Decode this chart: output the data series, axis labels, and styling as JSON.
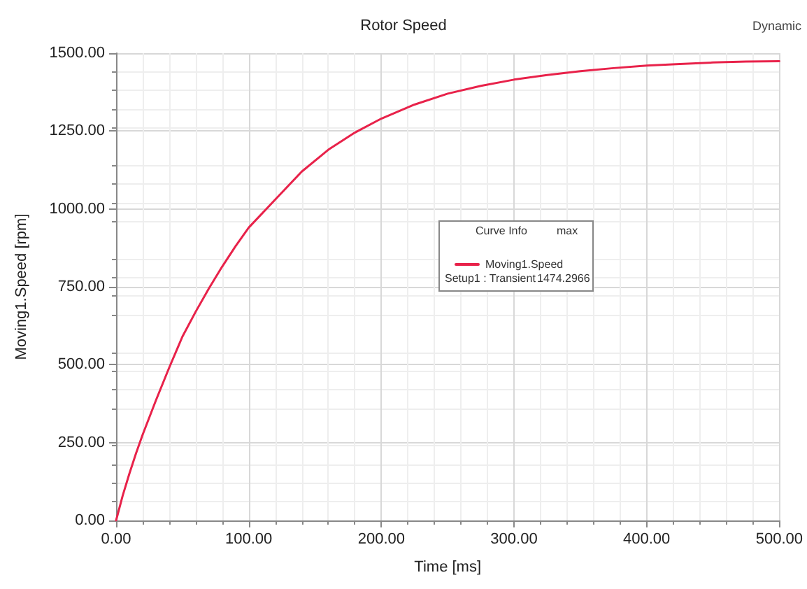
{
  "chart_data": {
    "type": "line",
    "title": "Rotor Speed",
    "xlabel": "Time [ms]",
    "ylabel": "Moving1.Speed [rpm]",
    "annotations": [
      "Dynamic",
      "Curve Info",
      "max",
      "Setup1 : Transient",
      "1474.2966"
    ],
    "xlim": [
      0,
      500
    ],
    "ylim": [
      0,
      1500
    ],
    "xticks": [
      {
        "value": 0,
        "label": "0.00"
      },
      {
        "value": 100,
        "label": "100.00"
      },
      {
        "value": 200,
        "label": "200.00"
      },
      {
        "value": 300,
        "label": "300.00"
      },
      {
        "value": 400,
        "label": "400.00"
      },
      {
        "value": 500,
        "label": "500.00"
      }
    ],
    "yticks": [
      {
        "value": 0,
        "label": "0.00"
      },
      {
        "value": 250,
        "label": "250.00"
      },
      {
        "value": 500,
        "label": "500.00"
      },
      {
        "value": 750,
        "label": "750.00"
      },
      {
        "value": 1000,
        "label": "1000.00"
      },
      {
        "value": 1250,
        "label": "1250.00"
      },
      {
        "value": 1500,
        "label": "1500.00"
      }
    ],
    "grid": true,
    "legend": "center",
    "marker": "none",
    "line_style": "solid",
    "series": [
      {
        "name": "Moving1.Speed",
        "color": "#e8224a",
        "x": [
          0,
          5,
          10,
          15,
          20,
          30,
          40,
          50,
          60,
          70,
          80,
          90,
          100,
          120,
          140,
          160,
          180,
          200,
          225,
          250,
          275,
          300,
          325,
          350,
          375,
          400,
          425,
          450,
          475,
          500
        ],
        "values": [
          0,
          80,
          150,
          215,
          275,
          385,
          490,
          590,
          670,
          745,
          815,
          880,
          940,
          1030,
          1120,
          1190,
          1245,
          1290,
          1335,
          1370,
          1395,
          1415,
          1430,
          1442,
          1452,
          1460,
          1465,
          1470,
          1473,
          1474
        ]
      }
    ]
  }
}
